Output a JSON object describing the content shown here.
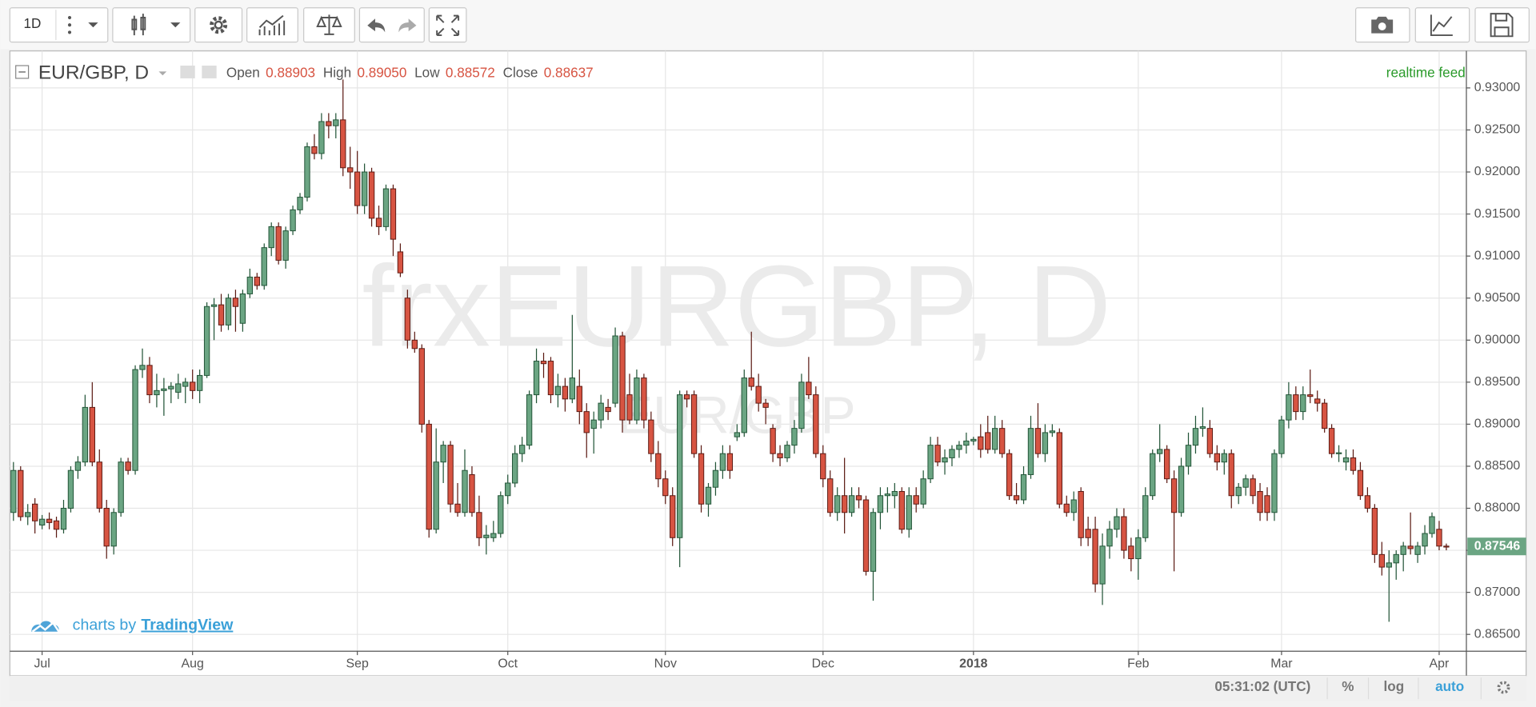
{
  "toolbar": {
    "interval": "1D"
  },
  "chart_data": {
    "type": "candlestick",
    "title": "EUR/GBP, D",
    "watermark": "frxEURGBP, D",
    "watermark_sub": "EUR/GBP",
    "legend": [
      {
        "label": "Open",
        "value": "0.88903"
      },
      {
        "label": "High",
        "value": "0.89050"
      },
      {
        "label": "Low",
        "value": "0.88572"
      },
      {
        "label": "Close",
        "value": "0.88637"
      }
    ],
    "feed": "realtime feed",
    "branding": {
      "text": "charts by",
      "link": "TradingView"
    },
    "up_color": "#6ba583",
    "down_color": "#d75442",
    "ylim": [
      0.863,
      0.9344
    ],
    "yticks": [
      {
        "value": 0.865,
        "label": "0.86500"
      },
      {
        "value": 0.87,
        "label": "0.87000"
      },
      {
        "value": 0.875,
        "label": "0.87500"
      },
      {
        "value": 0.88,
        "label": "0.88000"
      },
      {
        "value": 0.885,
        "label": "0.88500"
      },
      {
        "value": 0.89,
        "label": "0.89000"
      },
      {
        "value": 0.895,
        "label": "0.89500"
      },
      {
        "value": 0.9,
        "label": "0.90000"
      },
      {
        "value": 0.905,
        "label": "0.90500"
      },
      {
        "value": 0.91,
        "label": "0.91000"
      },
      {
        "value": 0.915,
        "label": "0.91500"
      },
      {
        "value": 0.92,
        "label": "0.92000"
      },
      {
        "value": 0.925,
        "label": "0.92500"
      },
      {
        "value": 0.93,
        "label": "0.93000"
      }
    ],
    "xlim": [
      -0.5,
      202.8
    ],
    "xticks": [
      {
        "value": 4,
        "label": "Jul"
      },
      {
        "value": 25,
        "label": "Aug"
      },
      {
        "value": 48,
        "label": "Sep"
      },
      {
        "value": 69,
        "label": "Oct"
      },
      {
        "value": 91,
        "label": "Nov"
      },
      {
        "value": 113,
        "label": "Dec"
      },
      {
        "value": 134,
        "label": "2018"
      },
      {
        "value": 157,
        "label": "Feb"
      },
      {
        "value": 177,
        "label": "Mar"
      },
      {
        "value": 199,
        "label": "Apr"
      }
    ],
    "grid": true,
    "ohlc": [
      [
        0.8795,
        0.8855,
        0.8785,
        0.8845
      ],
      [
        0.8845,
        0.885,
        0.8785,
        0.879
      ],
      [
        0.879,
        0.8805,
        0.878,
        0.8795
      ],
      [
        0.8805,
        0.8812,
        0.877,
        0.8785
      ],
      [
        0.878,
        0.8792,
        0.8775,
        0.8787
      ],
      [
        0.8787,
        0.8795,
        0.8775,
        0.8783
      ],
      [
        0.8785,
        0.879,
        0.8765,
        0.8775
      ],
      [
        0.8775,
        0.881,
        0.877,
        0.88
      ],
      [
        0.88,
        0.885,
        0.8795,
        0.8845
      ],
      [
        0.8845,
        0.8862,
        0.8835,
        0.8855
      ],
      [
        0.8855,
        0.8935,
        0.885,
        0.892
      ],
      [
        0.892,
        0.895,
        0.885,
        0.8855
      ],
      [
        0.8855,
        0.887,
        0.8795,
        0.88
      ],
      [
        0.88,
        0.881,
        0.874,
        0.8755
      ],
      [
        0.8755,
        0.88,
        0.8745,
        0.8795
      ],
      [
        0.8795,
        0.886,
        0.879,
        0.8855
      ],
      [
        0.8855,
        0.886,
        0.884,
        0.8845
      ],
      [
        0.8845,
        0.897,
        0.884,
        0.8965
      ],
      [
        0.8965,
        0.899,
        0.8955,
        0.897
      ],
      [
        0.897,
        0.898,
        0.8925,
        0.8935
      ],
      [
        0.8935,
        0.896,
        0.892,
        0.894
      ],
      [
        0.894,
        0.8955,
        0.891,
        0.8942
      ],
      [
        0.8942,
        0.895,
        0.8925,
        0.8945
      ],
      [
        0.8938,
        0.896,
        0.893,
        0.8948
      ],
      [
        0.8945,
        0.8955,
        0.8925,
        0.895
      ],
      [
        0.895,
        0.8965,
        0.893,
        0.894
      ],
      [
        0.894,
        0.8965,
        0.8925,
        0.8958
      ],
      [
        0.8958,
        0.9045,
        0.8955,
        0.904
      ],
      [
        0.904,
        0.905,
        0.9,
        0.9042
      ],
      [
        0.9042,
        0.9055,
        0.901,
        0.9018
      ],
      [
        0.9018,
        0.9055,
        0.9012,
        0.905
      ],
      [
        0.905,
        0.906,
        0.901,
        0.904
      ],
      [
        0.902,
        0.906,
        0.901,
        0.9055
      ],
      [
        0.9055,
        0.9085,
        0.905,
        0.9075
      ],
      [
        0.9075,
        0.908,
        0.906,
        0.9065
      ],
      [
        0.9065,
        0.9115,
        0.906,
        0.911
      ],
      [
        0.911,
        0.914,
        0.91,
        0.9135
      ],
      [
        0.9135,
        0.914,
        0.909,
        0.9095
      ],
      [
        0.9095,
        0.9135,
        0.9085,
        0.913
      ],
      [
        0.913,
        0.916,
        0.9125,
        0.9155
      ],
      [
        0.9155,
        0.9175,
        0.915,
        0.917
      ],
      [
        0.917,
        0.9235,
        0.9165,
        0.923
      ],
      [
        0.923,
        0.9245,
        0.9215,
        0.9222
      ],
      [
        0.9222,
        0.927,
        0.9215,
        0.926
      ],
      [
        0.926,
        0.927,
        0.924,
        0.9255
      ],
      [
        0.9255,
        0.927,
        0.924,
        0.9262
      ],
      [
        0.9262,
        0.931,
        0.9195,
        0.9205
      ],
      [
        0.9205,
        0.923,
        0.918,
        0.92
      ],
      [
        0.92,
        0.9225,
        0.915,
        0.916
      ],
      [
        0.916,
        0.921,
        0.915,
        0.92
      ],
      [
        0.92,
        0.9205,
        0.9135,
        0.9145
      ],
      [
        0.9145,
        0.916,
        0.9125,
        0.9135
      ],
      [
        0.9135,
        0.9185,
        0.913,
        0.918
      ],
      [
        0.918,
        0.9185,
        0.91,
        0.912
      ],
      [
        0.9105,
        0.9115,
        0.9075,
        0.908
      ],
      [
        0.905,
        0.906,
        0.899,
        0.9
      ],
      [
        0.9,
        0.901,
        0.8985,
        0.899
      ],
      [
        0.899,
        0.8995,
        0.889,
        0.89
      ],
      [
        0.89,
        0.8905,
        0.8765,
        0.8775
      ],
      [
        0.8775,
        0.8895,
        0.877,
        0.8855
      ],
      [
        0.8855,
        0.888,
        0.883,
        0.8875
      ],
      [
        0.8875,
        0.888,
        0.8795,
        0.8805
      ],
      [
        0.8805,
        0.883,
        0.879,
        0.8795
      ],
      [
        0.8795,
        0.887,
        0.879,
        0.8845
      ],
      [
        0.884,
        0.885,
        0.879,
        0.8795
      ],
      [
        0.8795,
        0.8815,
        0.8755,
        0.8765
      ],
      [
        0.8765,
        0.878,
        0.8745,
        0.8768
      ],
      [
        0.8765,
        0.8785,
        0.876,
        0.877
      ],
      [
        0.877,
        0.882,
        0.8765,
        0.8815
      ],
      [
        0.8815,
        0.884,
        0.8805,
        0.883
      ],
      [
        0.883,
        0.8875,
        0.8825,
        0.8865
      ],
      [
        0.8865,
        0.8885,
        0.8855,
        0.8875
      ],
      [
        0.8875,
        0.894,
        0.887,
        0.8935
      ],
      [
        0.8935,
        0.899,
        0.8925,
        0.8975
      ],
      [
        0.8975,
        0.8985,
        0.8955,
        0.8972
      ],
      [
        0.8975,
        0.898,
        0.8925,
        0.8935
      ],
      [
        0.8935,
        0.896,
        0.892,
        0.8945
      ],
      [
        0.8945,
        0.8955,
        0.8915,
        0.893
      ],
      [
        0.893,
        0.903,
        0.8925,
        0.8955
      ],
      [
        0.8945,
        0.8965,
        0.89,
        0.8915
      ],
      [
        0.8915,
        0.8925,
        0.886,
        0.889
      ],
      [
        0.8895,
        0.8915,
        0.8865,
        0.8905
      ],
      [
        0.8905,
        0.8935,
        0.8895,
        0.8925
      ],
      [
        0.892,
        0.893,
        0.8905,
        0.8915
      ],
      [
        0.8925,
        0.9015,
        0.892,
        0.9005
      ],
      [
        0.9005,
        0.901,
        0.889,
        0.8905
      ],
      [
        0.8935,
        0.896,
        0.89,
        0.8905
      ],
      [
        0.8905,
        0.8965,
        0.89,
        0.8955
      ],
      [
        0.8955,
        0.896,
        0.8895,
        0.8905
      ],
      [
        0.8905,
        0.8915,
        0.8855,
        0.8865
      ],
      [
        0.8865,
        0.888,
        0.8825,
        0.8835
      ],
      [
        0.8835,
        0.8845,
        0.8805,
        0.8815
      ],
      [
        0.8815,
        0.8825,
        0.8755,
        0.8765
      ],
      [
        0.8765,
        0.894,
        0.873,
        0.8935
      ],
      [
        0.8935,
        0.894,
        0.892,
        0.893
      ],
      [
        0.8935,
        0.894,
        0.886,
        0.8865
      ],
      [
        0.8865,
        0.8875,
        0.8795,
        0.8805
      ],
      [
        0.8805,
        0.883,
        0.879,
        0.8825
      ],
      [
        0.8825,
        0.8855,
        0.8815,
        0.8845
      ],
      [
        0.8845,
        0.8875,
        0.8835,
        0.8865
      ],
      [
        0.8865,
        0.8875,
        0.8835,
        0.8845
      ],
      [
        0.8885,
        0.89,
        0.888,
        0.889
      ],
      [
        0.889,
        0.8965,
        0.8885,
        0.8955
      ],
      [
        0.8955,
        0.901,
        0.894,
        0.8945
      ],
      [
        0.8945,
        0.896,
        0.8915,
        0.8925
      ],
      [
        0.8925,
        0.893,
        0.89,
        0.892
      ],
      [
        0.8895,
        0.89,
        0.8855,
        0.8865
      ],
      [
        0.8865,
        0.8875,
        0.885,
        0.886
      ],
      [
        0.886,
        0.888,
        0.8855,
        0.8875
      ],
      [
        0.8875,
        0.8905,
        0.8865,
        0.8895
      ],
      [
        0.8895,
        0.896,
        0.889,
        0.895
      ],
      [
        0.895,
        0.898,
        0.893,
        0.8935
      ],
      [
        0.8935,
        0.8945,
        0.886,
        0.8865
      ],
      [
        0.8865,
        0.8875,
        0.8825,
        0.8835
      ],
      [
        0.8835,
        0.8845,
        0.879,
        0.8795
      ],
      [
        0.8795,
        0.8825,
        0.8785,
        0.8815
      ],
      [
        0.8815,
        0.886,
        0.877,
        0.8795
      ],
      [
        0.8795,
        0.8825,
        0.879,
        0.8815
      ],
      [
        0.8815,
        0.8825,
        0.88,
        0.881
      ],
      [
        0.881,
        0.8815,
        0.872,
        0.8725
      ],
      [
        0.8725,
        0.88,
        0.869,
        0.8795
      ],
      [
        0.8795,
        0.8825,
        0.8775,
        0.8815
      ],
      [
        0.8815,
        0.8825,
        0.8795,
        0.8817
      ],
      [
        0.8815,
        0.883,
        0.88,
        0.882
      ],
      [
        0.882,
        0.8825,
        0.877,
        0.8775
      ],
      [
        0.8775,
        0.8825,
        0.8765,
        0.8815
      ],
      [
        0.8815,
        0.8825,
        0.8795,
        0.8805
      ],
      [
        0.8805,
        0.8845,
        0.88,
        0.8835
      ],
      [
        0.8835,
        0.8885,
        0.883,
        0.8875
      ],
      [
        0.8875,
        0.8885,
        0.885,
        0.8855
      ],
      [
        0.8855,
        0.887,
        0.884,
        0.886
      ],
      [
        0.886,
        0.8875,
        0.885,
        0.887
      ],
      [
        0.887,
        0.888,
        0.886,
        0.8875
      ],
      [
        0.8875,
        0.889,
        0.8865,
        0.888
      ],
      [
        0.888,
        0.8885,
        0.8875,
        0.8882
      ],
      [
        0.8885,
        0.89,
        0.886,
        0.887
      ],
      [
        0.889,
        0.891,
        0.8865,
        0.887
      ],
      [
        0.887,
        0.891,
        0.8865,
        0.8895
      ],
      [
        0.8895,
        0.8905,
        0.886,
        0.8865
      ],
      [
        0.8865,
        0.887,
        0.881,
        0.8815
      ],
      [
        0.8815,
        0.883,
        0.8805,
        0.881
      ],
      [
        0.881,
        0.885,
        0.8805,
        0.884
      ],
      [
        0.884,
        0.891,
        0.8835,
        0.8895
      ],
      [
        0.8895,
        0.8925,
        0.886,
        0.8865
      ],
      [
        0.8865,
        0.89,
        0.8855,
        0.889
      ],
      [
        0.889,
        0.89,
        0.8885,
        0.8892
      ],
      [
        0.889,
        0.8895,
        0.88,
        0.8805
      ],
      [
        0.8805,
        0.8815,
        0.879,
        0.8795
      ],
      [
        0.8795,
        0.882,
        0.8785,
        0.881
      ],
      [
        0.882,
        0.8825,
        0.8755,
        0.8765
      ],
      [
        0.8775,
        0.879,
        0.8755,
        0.8765
      ],
      [
        0.8775,
        0.879,
        0.87,
        0.871
      ],
      [
        0.871,
        0.877,
        0.8685,
        0.8755
      ],
      [
        0.8755,
        0.8785,
        0.874,
        0.8775
      ],
      [
        0.8775,
        0.88,
        0.8765,
        0.879
      ],
      [
        0.879,
        0.88,
        0.874,
        0.875
      ],
      [
        0.8755,
        0.8765,
        0.8725,
        0.874
      ],
      [
        0.874,
        0.8775,
        0.8715,
        0.8765
      ],
      [
        0.8765,
        0.8825,
        0.876,
        0.8815
      ],
      [
        0.8815,
        0.887,
        0.881,
        0.8865
      ],
      [
        0.8865,
        0.89,
        0.8855,
        0.887
      ],
      [
        0.887,
        0.8875,
        0.883,
        0.8835
      ],
      [
        0.8835,
        0.8845,
        0.8725,
        0.8795
      ],
      [
        0.8795,
        0.886,
        0.879,
        0.885
      ],
      [
        0.885,
        0.889,
        0.884,
        0.8875
      ],
      [
        0.8875,
        0.891,
        0.8865,
        0.8895
      ],
      [
        0.8895,
        0.892,
        0.8885,
        0.8897
      ],
      [
        0.8895,
        0.8905,
        0.886,
        0.8865
      ],
      [
        0.8865,
        0.8875,
        0.8845,
        0.8855
      ],
      [
        0.8855,
        0.887,
        0.884,
        0.8865
      ],
      [
        0.8865,
        0.887,
        0.88,
        0.8815
      ],
      [
        0.8815,
        0.883,
        0.8805,
        0.8825
      ],
      [
        0.8825,
        0.884,
        0.8815,
        0.8835
      ],
      [
        0.8835,
        0.884,
        0.8805,
        0.8815
      ],
      [
        0.882,
        0.883,
        0.8785,
        0.8795
      ],
      [
        0.8815,
        0.8825,
        0.8785,
        0.8795
      ],
      [
        0.8795,
        0.887,
        0.8785,
        0.8865
      ],
      [
        0.8865,
        0.891,
        0.886,
        0.8905
      ],
      [
        0.8905,
        0.895,
        0.8895,
        0.8935
      ],
      [
        0.8935,
        0.8945,
        0.8905,
        0.8915
      ],
      [
        0.8915,
        0.8945,
        0.8905,
        0.8935
      ],
      [
        0.8935,
        0.8965,
        0.8925,
        0.8933
      ],
      [
        0.893,
        0.894,
        0.8915,
        0.8925
      ],
      [
        0.8925,
        0.893,
        0.889,
        0.8895
      ],
      [
        0.8895,
        0.89,
        0.886,
        0.8865
      ],
      [
        0.8865,
        0.8875,
        0.8855,
        0.8866
      ],
      [
        0.8855,
        0.887,
        0.8845,
        0.886
      ],
      [
        0.886,
        0.887,
        0.884,
        0.8845
      ],
      [
        0.8845,
        0.8855,
        0.881,
        0.8815
      ],
      [
        0.8815,
        0.8825,
        0.8795,
        0.88
      ],
      [
        0.88,
        0.8805,
        0.8735,
        0.8745
      ],
      [
        0.8745,
        0.876,
        0.872,
        0.873
      ],
      [
        0.873,
        0.875,
        0.8665,
        0.8735
      ],
      [
        0.8735,
        0.875,
        0.8715,
        0.8745
      ],
      [
        0.8745,
        0.876,
        0.8725,
        0.8755
      ],
      [
        0.8755,
        0.8795,
        0.8745,
        0.8752
      ],
      [
        0.8745,
        0.876,
        0.8735,
        0.8755
      ],
      [
        0.8755,
        0.878,
        0.8745,
        0.877
      ],
      [
        0.877,
        0.8795,
        0.8765,
        0.879
      ],
      [
        0.8775,
        0.8785,
        0.875,
        0.8755
      ],
      [
        0.8755,
        0.8758,
        0.875,
        0.87546
      ]
    ]
  },
  "status_bar": {
    "time": "05:31:02 (UTC)",
    "percent": "%",
    "log": "log",
    "auto": "auto"
  }
}
